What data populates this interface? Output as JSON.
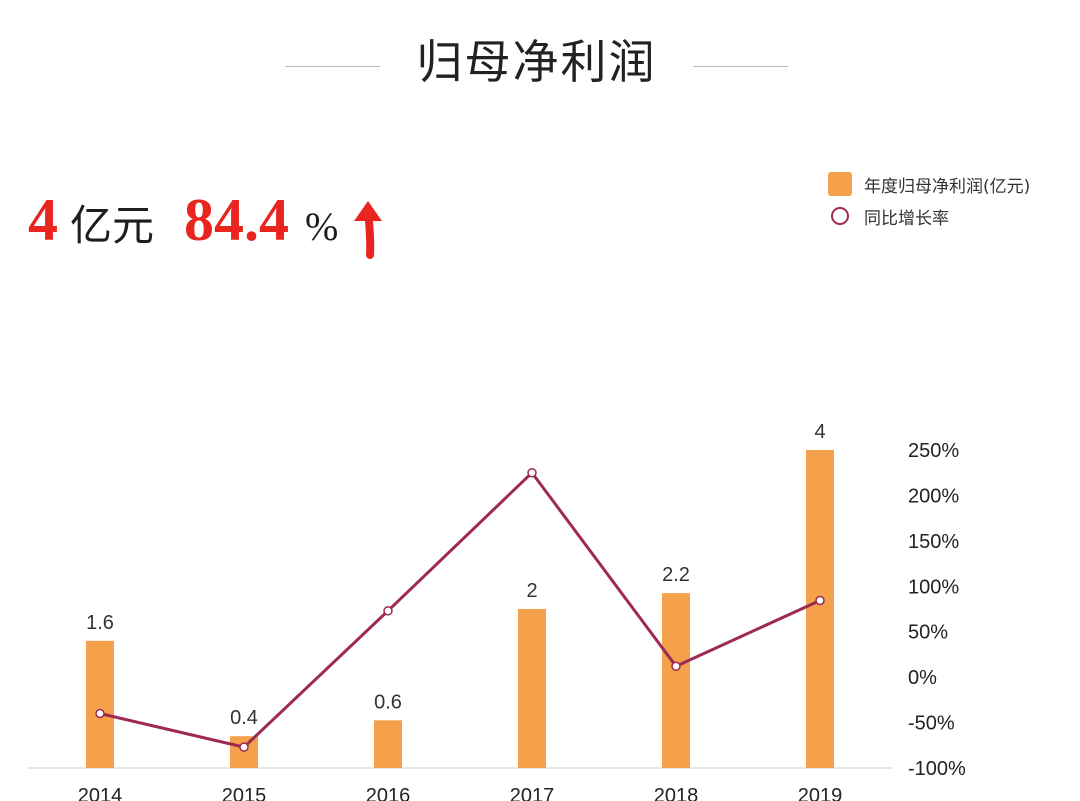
{
  "header": {
    "title": "归母净利润"
  },
  "headline": {
    "value": "4",
    "unit": "亿元",
    "growth": "84.4",
    "growth_unit": "%",
    "arrow_icon": "up-arrow-icon",
    "accent_color": "#e8251f"
  },
  "legend": {
    "bar_label": "年度归母净利润(亿元)",
    "line_label": "同比增长率"
  },
  "colors": {
    "bar": "#f5a14c",
    "line": "#9e2a54",
    "axis": "#cccccc"
  },
  "chart_data": {
    "type": "bar",
    "categories": [
      "2014",
      "2015",
      "2016",
      "2017",
      "2018",
      "2019"
    ],
    "series": [
      {
        "name": "年度归母净利润(亿元)",
        "type": "bar",
        "axis": "left",
        "values": [
          1.6,
          0.4,
          0.6,
          2,
          2.2,
          4
        ],
        "data_labels": [
          "1.6",
          "0.4",
          "0.6",
          "2",
          "2.2",
          "4"
        ]
      },
      {
        "name": "同比增长率",
        "type": "line",
        "axis": "right",
        "values": [
          -40,
          -77,
          73,
          225,
          12,
          84.4
        ]
      }
    ],
    "left_ylim": [
      0,
      4
    ],
    "right_ylim": [
      -100,
      250
    ],
    "right_yticks": [
      "250%",
      "200%",
      "150%",
      "100%",
      "50%",
      "0%",
      "-50%",
      "-100%"
    ],
    "right_ytick_values": [
      250,
      200,
      150,
      100,
      50,
      0,
      -50,
      -100
    ],
    "legend_position": "top-right",
    "grid": false
  }
}
